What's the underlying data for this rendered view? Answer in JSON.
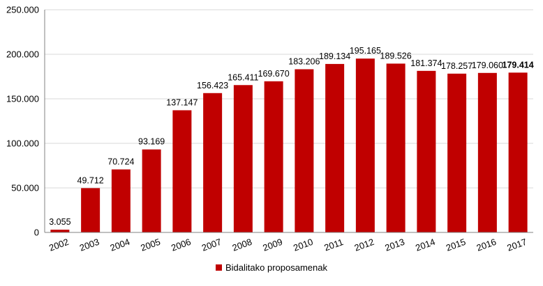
{
  "chart_data": {
    "type": "bar",
    "categories": [
      "2002",
      "2003",
      "2004",
      "2005",
      "2006",
      "2007",
      "2008",
      "2009",
      "2010",
      "2011",
      "2012",
      "2013",
      "2014",
      "2015",
      "2016",
      "2017"
    ],
    "series": [
      {
        "name": "Bidalitako proposamenak",
        "values": [
          3055,
          49712,
          70724,
          93169,
          137147,
          156423,
          165411,
          169670,
          183206,
          189134,
          195165,
          189526,
          181374,
          178257,
          179060,
          179414
        ]
      }
    ],
    "data_labels": [
      "3.055",
      "49.712",
      "70.724",
      "93.169",
      "137.147",
      "156.423",
      "165.411",
      "169.670",
      "183.206",
      "189.134",
      "195.165",
      "189.526",
      "181.374",
      "178.257",
      "179.060",
      "179.414"
    ],
    "bold_label_index": 15,
    "yticks": [
      0,
      50000,
      100000,
      150000,
      200000,
      250000
    ],
    "ytick_labels": [
      "0",
      "50.000",
      "100.000",
      "150.000",
      "200.000",
      "250.000"
    ],
    "ylim": [
      0,
      250000
    ],
    "grid": true,
    "legend_position": "bottom",
    "bar_color": "#c00000",
    "grid_color": "#d9d9d9",
    "axis_color": "#808080"
  }
}
